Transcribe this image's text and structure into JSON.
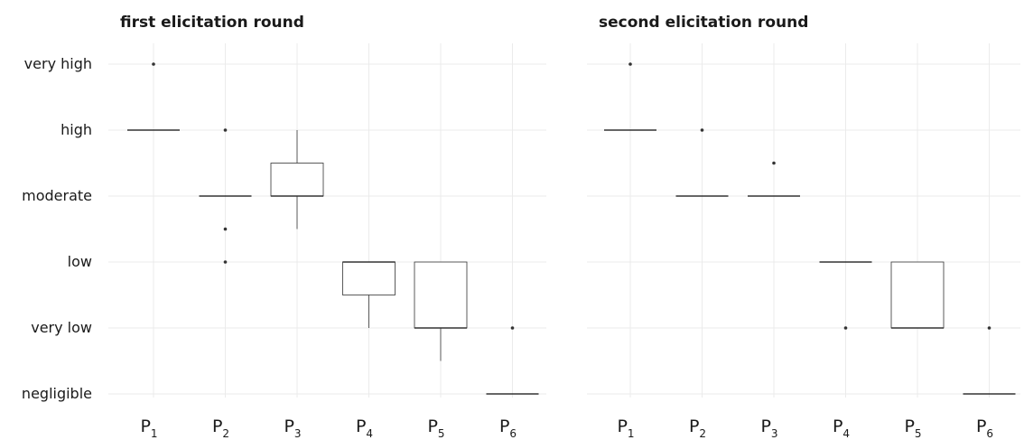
{
  "chart_data": {
    "type": "boxplot",
    "levels": [
      "negligible",
      "very low",
      "low",
      "moderate",
      "high",
      "very high"
    ],
    "categories": [
      {
        "base": "P",
        "sub": "1"
      },
      {
        "base": "P",
        "sub": "2"
      },
      {
        "base": "P",
        "sub": "3"
      },
      {
        "base": "P",
        "sub": "4"
      },
      {
        "base": "P",
        "sub": "5"
      },
      {
        "base": "P",
        "sub": "6"
      }
    ],
    "panels": [
      {
        "title": "first elicitation round",
        "boxes": [
          {
            "q1": 4,
            "median": 4,
            "q3": 4,
            "whisker_low": 4,
            "whisker_high": 4,
            "outliers": [
              5
            ]
          },
          {
            "q1": 3,
            "median": 3,
            "q3": 3,
            "whisker_low": 3,
            "whisker_high": 3,
            "outliers": [
              4,
              2.5,
              2
            ]
          },
          {
            "q1": 3,
            "median": 3,
            "q3": 3.5,
            "whisker_low": 2.5,
            "whisker_high": 4,
            "outliers": []
          },
          {
            "q1": 1.5,
            "median": 2,
            "q3": 2,
            "whisker_low": 1,
            "whisker_high": 2,
            "outliers": []
          },
          {
            "q1": 1,
            "median": 1,
            "q3": 2,
            "whisker_low": 0.5,
            "whisker_high": 2,
            "outliers": []
          },
          {
            "q1": 0,
            "median": 0,
            "q3": 0,
            "whisker_low": 0,
            "whisker_high": 0,
            "outliers": [
              1
            ]
          }
        ]
      },
      {
        "title": "second elicitation round",
        "boxes": [
          {
            "q1": 4,
            "median": 4,
            "q3": 4,
            "whisker_low": 4,
            "whisker_high": 4,
            "outliers": [
              5
            ]
          },
          {
            "q1": 3,
            "median": 3,
            "q3": 3,
            "whisker_low": 3,
            "whisker_high": 3,
            "outliers": [
              4
            ]
          },
          {
            "q1": 3,
            "median": 3,
            "q3": 3,
            "whisker_low": 3,
            "whisker_high": 3,
            "outliers": [
              3.5
            ]
          },
          {
            "q1": 2,
            "median": 2,
            "q3": 2,
            "whisker_low": 2,
            "whisker_high": 2,
            "outliers": [
              1
            ]
          },
          {
            "q1": 1,
            "median": 1,
            "q3": 2,
            "whisker_low": 1,
            "whisker_high": 2,
            "outliers": []
          },
          {
            "q1": 0,
            "median": 0,
            "q3": 0,
            "whisker_low": 0,
            "whisker_high": 0,
            "outliers": [
              1
            ]
          }
        ]
      }
    ],
    "grid": true,
    "legend": "none"
  }
}
